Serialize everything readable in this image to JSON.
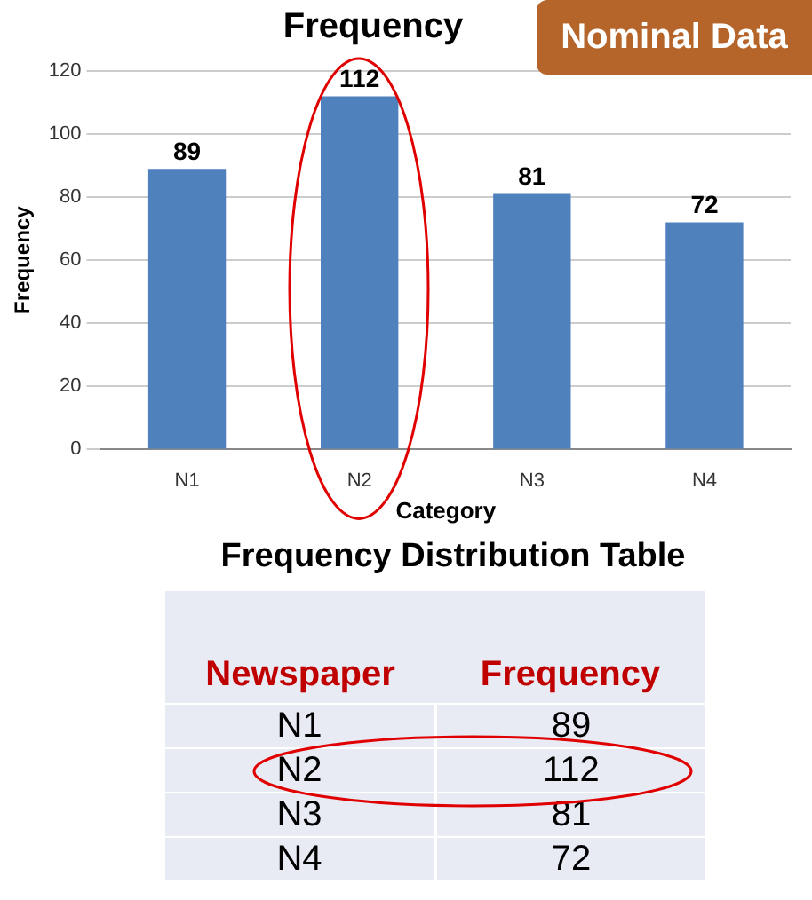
{
  "chart_data": {
    "type": "bar",
    "title": "Frequency",
    "xlabel": "Category",
    "ylabel": "Frequency",
    "categories": [
      "N1",
      "N2",
      "N3",
      "N4"
    ],
    "values": [
      89,
      112,
      81,
      72
    ],
    "color": "#4f81bd",
    "ylim": [
      0,
      120
    ],
    "yticks": [
      0,
      20,
      40,
      60,
      80,
      100,
      120
    ],
    "grid": "y",
    "data_labels": true,
    "legend": false,
    "annotations": [
      "Nominal Data",
      "Frequency Distribution Table",
      "Newspaper",
      "Frequency",
      "89",
      "112",
      "81",
      "72"
    ]
  }
}
